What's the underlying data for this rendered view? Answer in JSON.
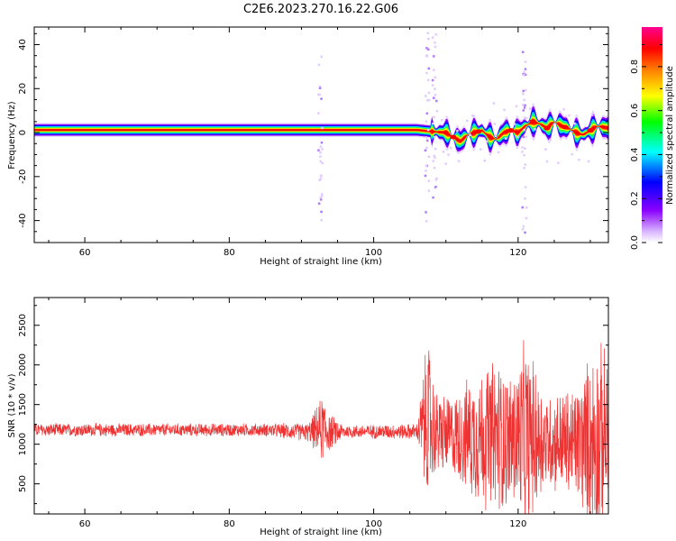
{
  "figure_title": "C2E6.2023.270.16.22.G06",
  "chart_data": [
    {
      "type": "heatmap",
      "xlabel": "Height of straight line (km)",
      "ylabel": "Frequency (Hz)",
      "xlim": [
        53,
        132.5
      ],
      "ylim": [
        -50,
        48
      ],
      "xticks": [
        60,
        80,
        100,
        120
      ],
      "yticks": [
        -40,
        -20,
        0,
        20,
        40
      ],
      "colorbar": {
        "label": "Normalized spectral amplitude",
        "range": [
          0,
          0.98
        ],
        "ticks": [
          0.0,
          0.2,
          0.4,
          0.6,
          0.8
        ],
        "colormap": [
          "#ffffff",
          "#d9b8ff",
          "#8a00ff",
          "#0000ff",
          "#00ffff",
          "#00ff00",
          "#ffff00",
          "#ff8000",
          "#ff0000",
          "#ff0090"
        ]
      },
      "ridge": {
        "description_points_x": [
          53,
          60,
          70,
          80,
          90,
          100,
          106,
          108,
          110,
          111,
          112,
          113,
          114,
          115,
          116,
          117,
          118,
          119,
          120,
          121,
          122,
          123,
          124,
          125,
          126,
          127,
          128,
          129,
          130,
          131,
          132.5
        ],
        "frequency_hz": [
          1.2,
          1.2,
          1.2,
          1.2,
          1.2,
          1.2,
          1.2,
          0.5,
          0,
          -2,
          -4,
          -1,
          0,
          1,
          -2,
          -3,
          0,
          1,
          0,
          3,
          5,
          4,
          2,
          5,
          3,
          2,
          0,
          -1,
          1,
          3,
          2
        ]
      },
      "spike_columns_km": [
        92.5,
        107.3,
        108.3,
        120.7
      ]
    },
    {
      "type": "line",
      "xlabel": "Height of straight line (km)",
      "ylabel": "SNR (10 * v/v)",
      "xlim": [
        53,
        132.5
      ],
      "ylim": [
        120,
        2850
      ],
      "xticks": [
        60,
        80,
        100,
        120
      ],
      "yticks": [
        500,
        1000,
        1500,
        2000,
        2500
      ],
      "color": "#ee3333",
      "envelope": [
        {
          "x": 53,
          "mean": 1180,
          "amp": 90
        },
        {
          "x": 70,
          "mean": 1180,
          "amp": 90
        },
        {
          "x": 85,
          "mean": 1180,
          "amp": 90
        },
        {
          "x": 91,
          "mean": 1150,
          "amp": 130
        },
        {
          "x": 93,
          "mean": 1200,
          "amp": 480
        },
        {
          "x": 94,
          "mean": 1150,
          "amp": 250
        },
        {
          "x": 96,
          "mean": 1160,
          "amp": 90
        },
        {
          "x": 106,
          "mean": 1160,
          "amp": 110
        },
        {
          "x": 107.5,
          "mean": 1300,
          "amp": 1200
        },
        {
          "x": 108.5,
          "mean": 1150,
          "amp": 600
        },
        {
          "x": 111,
          "mean": 1100,
          "amp": 550
        },
        {
          "x": 114,
          "mean": 1100,
          "amp": 900
        },
        {
          "x": 117,
          "mean": 1100,
          "amp": 1100
        },
        {
          "x": 119,
          "mean": 1050,
          "amp": 900
        },
        {
          "x": 121,
          "mean": 1100,
          "amp": 1300
        },
        {
          "x": 124,
          "mean": 1050,
          "amp": 650
        },
        {
          "x": 128,
          "mean": 1000,
          "amp": 800
        },
        {
          "x": 131,
          "mean": 1050,
          "amp": 1400
        },
        {
          "x": 132.5,
          "mean": 1100,
          "amp": 1100
        }
      ]
    }
  ]
}
